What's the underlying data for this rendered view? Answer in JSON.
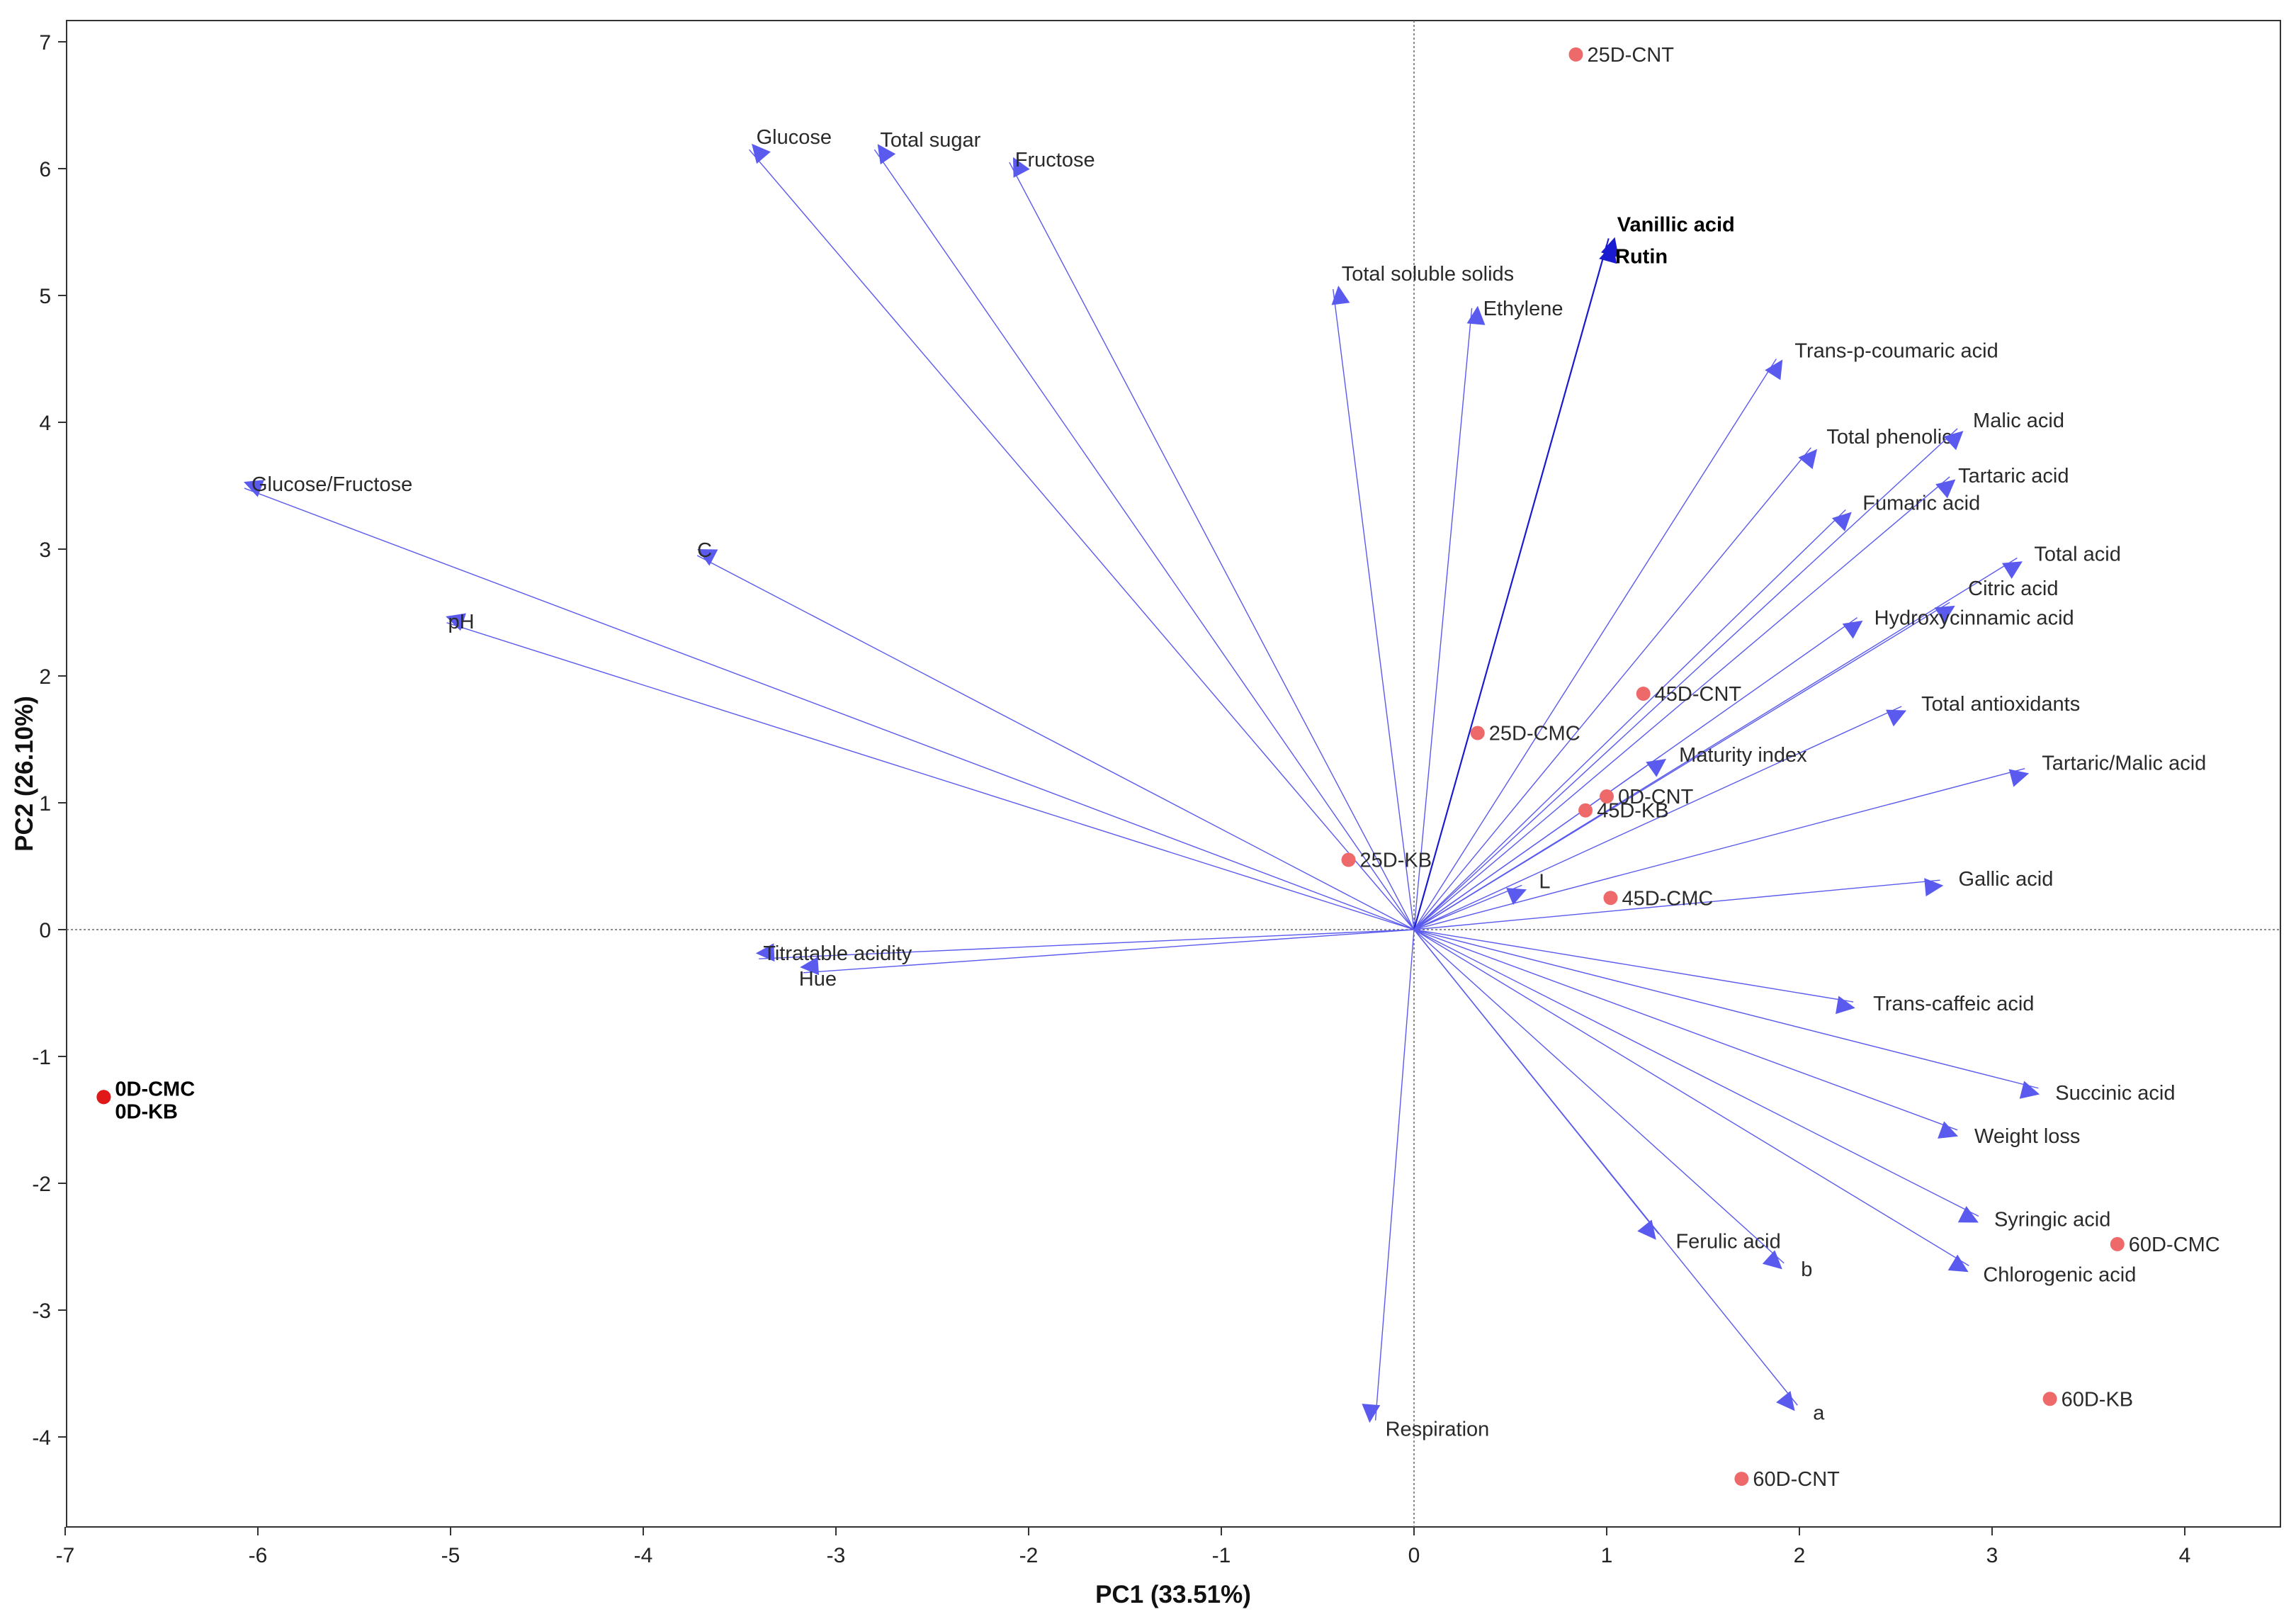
{
  "chart_data": {
    "type": "scatter",
    "subtype": "PCA biplot",
    "xlabel": "PC1 (33.51%)",
    "ylabel": "PC2 (26.10%)",
    "xlim": [
      -7,
      4.5
    ],
    "ylim": [
      -4.7,
      7.2
    ],
    "xticks": [
      -7,
      -6,
      -5,
      -4,
      -3,
      -2,
      -1,
      0,
      1,
      2,
      3,
      4
    ],
    "yticks": [
      -4,
      -3,
      -2,
      -1,
      0,
      1,
      2,
      3,
      4,
      5,
      6,
      7
    ],
    "vector_color": "#5a5aee",
    "vector_color_dark": "#1a1ad0",
    "point_color": "#ee6a6a",
    "point_color_dark": "#e01818",
    "loadings": [
      {
        "name": "Glucose",
        "x": -3.45,
        "y": 6.15
      },
      {
        "name": "Total sugar",
        "x": -2.8,
        "y": 6.15
      },
      {
        "name": "Fructose",
        "x": -2.1,
        "y": 6.05
      },
      {
        "name": "Total soluble solids",
        "x": -0.42,
        "y": 5.05
      },
      {
        "name": "Ethylene",
        "x": 0.3,
        "y": 4.9
      },
      {
        "name": "Vanillic acid",
        "x": 1.01,
        "y": 5.45,
        "dark": true
      },
      {
        "name": "Rutin",
        "x": 1.0,
        "y": 5.4,
        "dark": true
      },
      {
        "name": "Trans-p-coumaric acid",
        "x": 1.88,
        "y": 4.5
      },
      {
        "name": "Total phenolic",
        "x": 2.06,
        "y": 3.8
      },
      {
        "name": "Malic acid",
        "x": 2.82,
        "y": 3.95
      },
      {
        "name": "Tartaric acid",
        "x": 2.78,
        "y": 3.57
      },
      {
        "name": "Fumaric acid",
        "x": 2.24,
        "y": 3.31
      },
      {
        "name": "Total acid",
        "x": 3.13,
        "y": 2.93
      },
      {
        "name": "Citric acid",
        "x": 2.78,
        "y": 2.58
      },
      {
        "name": "Hydroxycinnamic acid",
        "x": 2.3,
        "y": 2.46
      },
      {
        "name": "Total antioxidants",
        "x": 2.53,
        "y": 1.76
      },
      {
        "name": "Maturity index",
        "x": 1.28,
        "y": 1.37
      },
      {
        "name": "Tartaric/Malic acid",
        "x": 3.17,
        "y": 1.27
      },
      {
        "name": "L",
        "x": 0.56,
        "y": 0.35
      },
      {
        "name": "Gallic acid",
        "x": 2.73,
        "y": 0.39
      },
      {
        "name": "Trans-caffeic acid",
        "x": 2.28,
        "y": -0.57
      },
      {
        "name": "Succinic acid",
        "x": 3.24,
        "y": -1.25
      },
      {
        "name": "Weight loss",
        "x": 2.82,
        "y": -1.58
      },
      {
        "name": "Syringic acid",
        "x": 2.93,
        "y": -2.26
      },
      {
        "name": "Chlorogenic acid",
        "x": 2.88,
        "y": -2.65
      },
      {
        "name": "Ferulic acid",
        "x": 1.27,
        "y": -2.4
      },
      {
        "name": "b",
        "x": 1.92,
        "y": -2.63
      },
      {
        "name": "a",
        "x": 1.99,
        "y": -3.75
      },
      {
        "name": "Respiration",
        "x": -0.2,
        "y": -3.87
      },
      {
        "name": "Titratable acidity",
        "x": -3.4,
        "y": -0.23
      },
      {
        "name": "Hue",
        "x": -3.17,
        "y": -0.34
      },
      {
        "name": "Glucose/Fructose",
        "x": -6.07,
        "y": 3.48
      },
      {
        "name": "C",
        "x": -3.72,
        "y": 2.95
      },
      {
        "name": "pH",
        "x": -5.02,
        "y": 2.42
      }
    ],
    "scores": [
      {
        "name": "25D-CNT",
        "x": 0.84,
        "y": 6.9
      },
      {
        "name": "45D-CNT",
        "x": 1.19,
        "y": 1.86
      },
      {
        "name": "25D-CMC",
        "x": 0.33,
        "y": 1.55
      },
      {
        "name": "0D-CNT",
        "x": 1.0,
        "y": 1.05
      },
      {
        "name": "45D-KB",
        "x": 0.89,
        "y": 0.94
      },
      {
        "name": "25D-KB",
        "x": -0.34,
        "y": 0.55
      },
      {
        "name": "45D-CMC",
        "x": 1.02,
        "y": 0.25
      },
      {
        "name": "0D-CMC",
        "x": -6.8,
        "y": -1.32,
        "dark": true
      },
      {
        "name": "0D-KB",
        "x": -6.8,
        "y": -1.32,
        "dark": true
      },
      {
        "name": "60D-CMC",
        "x": 3.65,
        "y": -2.48
      },
      {
        "name": "60D-KB",
        "x": 3.3,
        "y": -3.7
      },
      {
        "name": "60D-CNT",
        "x": 1.7,
        "y": -4.33
      }
    ]
  }
}
